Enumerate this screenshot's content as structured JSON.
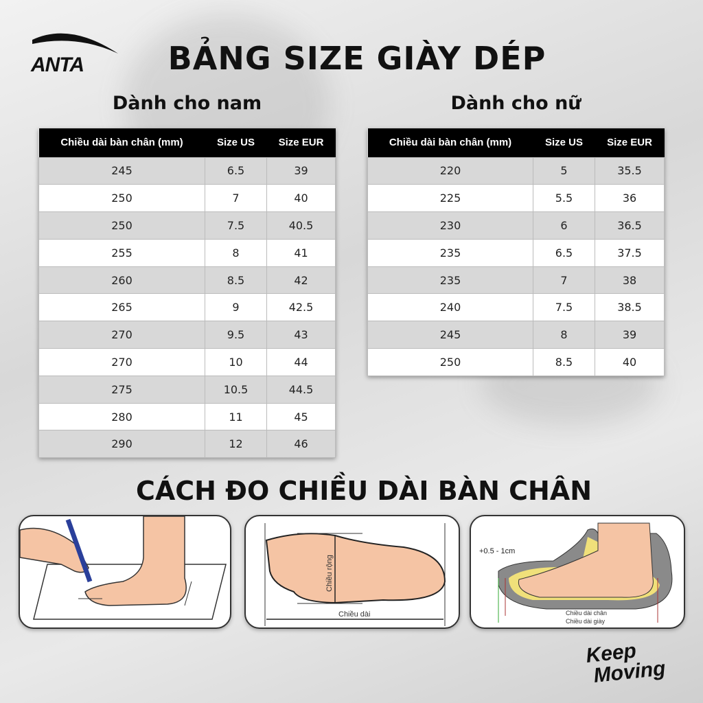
{
  "brand": {
    "name": "ANTA",
    "slogan_line1": "Keep",
    "slogan_line2": "Moving"
  },
  "title": "BẢNG SIZE GIÀY DÉP",
  "men": {
    "heading": "Dành cho nam",
    "columns": [
      "Chiều dài bàn chân (mm)",
      "Size US",
      "Size EUR"
    ],
    "rows": [
      [
        "245",
        "6.5",
        "39"
      ],
      [
        "250",
        "7",
        "40"
      ],
      [
        "250",
        "7.5",
        "40.5"
      ],
      [
        "255",
        "8",
        "41"
      ],
      [
        "260",
        "8.5",
        "42"
      ],
      [
        "265",
        "9",
        "42.5"
      ],
      [
        "270",
        "9.5",
        "43"
      ],
      [
        "270",
        "10",
        "44"
      ],
      [
        "275",
        "10.5",
        "44.5"
      ],
      [
        "280",
        "11",
        "45"
      ],
      [
        "290",
        "12",
        "46"
      ]
    ]
  },
  "women": {
    "heading": "Dành cho nữ",
    "columns": [
      "Chiều dài bàn chân (mm)",
      "Size US",
      "Size EUR"
    ],
    "rows": [
      [
        "220",
        "5",
        "35.5"
      ],
      [
        "225",
        "5.5",
        "36"
      ],
      [
        "230",
        "6",
        "36.5"
      ],
      [
        "235",
        "6.5",
        "37.5"
      ],
      [
        "235",
        "7",
        "38"
      ],
      [
        "240",
        "7.5",
        "38.5"
      ],
      [
        "245",
        "8",
        "39"
      ],
      [
        "250",
        "8.5",
        "40"
      ]
    ]
  },
  "measure": {
    "heading": "CÁCH ĐO CHIỀU DÀI BÀN CHÂN",
    "panel2": {
      "width_label": "Chiều rộng",
      "length_label": "Chiều dài"
    },
    "panel3": {
      "allowance": "+0.5 - 1cm",
      "foot_length": "Chiều dài chân",
      "shoe_length": "Chiều dài giày"
    }
  },
  "colors": {
    "skin": "#f5c4a4",
    "header": "#000000",
    "row_alt": "#d8d8d8"
  }
}
